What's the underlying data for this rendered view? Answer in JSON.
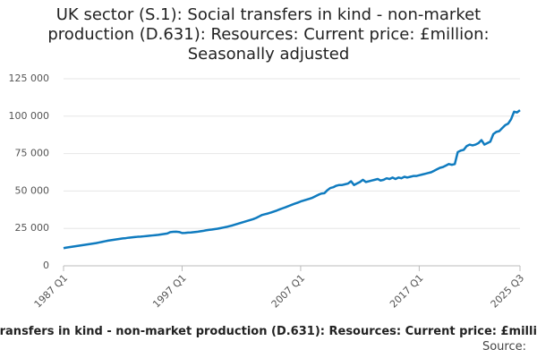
{
  "chart_data": {
    "type": "line",
    "title": "UK sector (S.1): Social transfers in kind - non-market production (D.631): Resources: Current price: £million: Seasonally adjusted",
    "source": "Source:",
    "color": "#0f7bbf",
    "grid": true,
    "ylim": [
      0,
      125000
    ],
    "yticks": [
      0,
      {
        "value": 25000,
        "label": "25 000"
      },
      {
        "value": 50000,
        "label": "50 000"
      },
      {
        "value": 75000,
        "label": "75 000"
      },
      {
        "value": 100000,
        "label": "100 000"
      },
      {
        "value": 125000,
        "label": "125 000"
      }
    ],
    "categories": [
      "1987 Q1",
      null,
      null,
      null,
      null,
      null,
      null,
      null,
      null,
      null,
      null,
      null,
      null,
      null,
      null,
      null,
      null,
      null,
      null,
      null,
      null,
      null,
      null,
      null,
      null,
      null,
      null,
      null,
      null,
      null,
      null,
      null,
      null,
      null,
      null,
      null,
      null,
      null,
      null,
      null,
      "1997 Q1",
      null,
      null,
      null,
      null,
      null,
      null,
      null,
      null,
      null,
      null,
      null,
      null,
      null,
      null,
      null,
      null,
      null,
      null,
      null,
      null,
      null,
      null,
      null,
      null,
      null,
      null,
      null,
      null,
      null,
      null,
      null,
      null,
      null,
      null,
      null,
      null,
      null,
      null,
      null,
      "2007 Q1",
      null,
      null,
      null,
      null,
      null,
      null,
      null,
      null,
      null,
      null,
      null,
      null,
      null,
      null,
      null,
      null,
      null,
      null,
      null,
      null,
      null,
      null,
      null,
      null,
      null,
      null,
      null,
      null,
      null,
      null,
      null,
      null,
      null,
      null,
      null,
      null,
      null,
      null,
      null,
      "2017 Q1",
      null,
      null,
      null,
      null,
      null,
      null,
      null,
      null,
      null,
      null,
      null,
      null,
      null,
      null,
      null,
      null,
      null,
      null,
      null,
      null,
      null,
      null,
      null,
      null,
      null,
      null,
      null,
      null,
      null,
      null,
      null,
      null,
      null,
      "2025 Q3"
    ],
    "values": [
      11800,
      12200,
      12500,
      12800,
      13100,
      13400,
      13700,
      14000,
      14300,
      14600,
      14900,
      15200,
      15600,
      16000,
      16400,
      16800,
      17100,
      17400,
      17700,
      18000,
      18300,
      18500,
      18800,
      19000,
      19200,
      19400,
      19500,
      19700,
      19900,
      20100,
      20300,
      20500,
      20700,
      21000,
      21300,
      21600,
      22500,
      22700,
      22800,
      22600,
      21900,
      22000,
      22200,
      22300,
      22500,
      22700,
      23000,
      23300,
      23700,
      24000,
      24200,
      24500,
      24800,
      25200,
      25600,
      26000,
      26500,
      27000,
      27600,
      28200,
      28800,
      29400,
      30000,
      30600,
      31200,
      32000,
      33000,
      34000,
      34500,
      35000,
      35600,
      36300,
      37000,
      37800,
      38500,
      39200,
      40000,
      40800,
      41500,
      42200,
      43000,
      43600,
      44200,
      44800,
      45500,
      46500,
      47500,
      48300,
      48500,
      50500,
      52000,
      52500,
      53500,
      54000,
      54000,
      54500,
      55000,
      56500,
      54000,
      55000,
      56000,
      57500,
      56000,
      56500,
      57000,
      57500,
      58000,
      57000,
      57500,
      58500,
      58000,
      59000,
      58000,
      59000,
      58500,
      59500,
      59000,
      59500,
      60000,
      60000,
      60500,
      61000,
      61500,
      62000,
      62500,
      63500,
      64500,
      65500,
      66000,
      67000,
      68000,
      67500,
      68000,
      76000,
      77000,
      77500,
      80000,
      81000,
      80500,
      81000,
      82000,
      84000,
      81000,
      82000,
      83000,
      88000,
      89500,
      90000,
      92000,
      94000,
      95000,
      98000,
      103000,
      102500,
      104000
    ]
  }
}
